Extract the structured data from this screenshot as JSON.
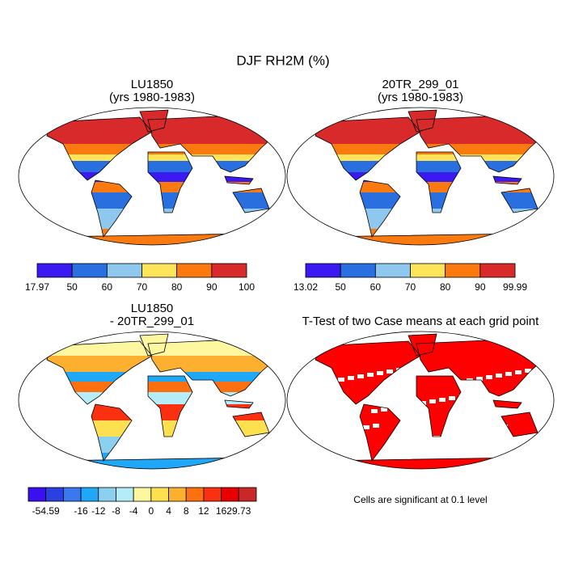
{
  "title": "DJF RH2M (%)",
  "panels": [
    {
      "title": [
        "LU1850",
        "(yrs 1980-1983)"
      ],
      "colorbar": {
        "colors": [
          "#3a1af0",
          "#2a6fe0",
          "#8ec8ee",
          "#fde45a",
          "#fb7a10",
          "#d82a2a"
        ],
        "labels": [
          17.97,
          50,
          60,
          70,
          80,
          90,
          100
        ]
      }
    },
    {
      "title": [
        "20TR_299_01",
        "(yrs 1980-1983)"
      ],
      "colorbar": {
        "colors": [
          "#3a1af0",
          "#2a6fe0",
          "#8ec8ee",
          "#fde45a",
          "#fb7a10",
          "#d82a2a"
        ],
        "labels": [
          13.02,
          50,
          60,
          70,
          80,
          90,
          99.99
        ]
      }
    },
    {
      "title": [
        "LU1850",
        "- 20TR_299_01"
      ],
      "colorbar": {
        "colors": [
          "#3a10f0",
          "#2a40e0",
          "#3a78f0",
          "#20a8f8",
          "#8cd0f0",
          "#b4ecf8",
          "#fdf8a0",
          "#fde050",
          "#fdb030",
          "#fd7010",
          "#fa3010",
          "#e80000",
          "#c82828"
        ],
        "labels": [
          null,
          -54.59,
          null,
          -16,
          -12,
          -8,
          -4,
          0,
          4,
          8,
          12,
          16,
          29.73
        ]
      }
    },
    {
      "title": [
        "T-Test of two Case means at each grid point"
      ],
      "color": "#ff0000",
      "note": "Cells are significant at 0.1 level"
    }
  ]
}
